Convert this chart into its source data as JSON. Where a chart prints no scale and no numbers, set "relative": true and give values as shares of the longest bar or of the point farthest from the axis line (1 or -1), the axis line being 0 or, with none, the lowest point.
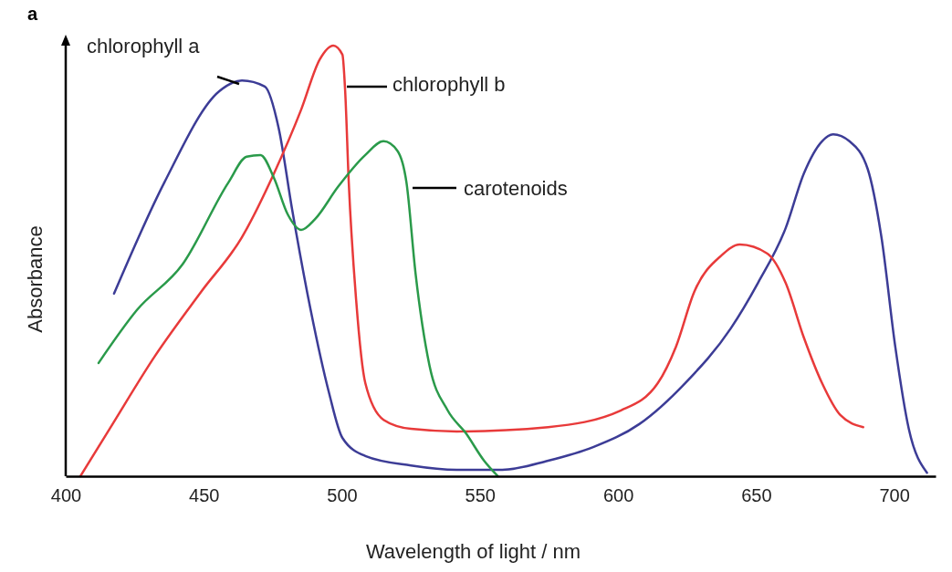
{
  "chart_data": {
    "type": "line",
    "relative": true,
    "xlabel": "Wavelength of light / nm",
    "ylabel": "Absorbance",
    "annotations": [
      "a"
    ],
    "xlim": [
      400,
      715
    ],
    "xticks": [
      400,
      450,
      500,
      550,
      600,
      650,
      700
    ],
    "legend": false,
    "marker": "none",
    "line_style": "solid",
    "series": [
      {
        "name": "chlorophyll a",
        "color": "#3c3c96",
        "x": [
          417.5,
          435.7,
          455.6,
          463.8,
          472.1,
          477.1,
          482.0,
          488.7,
          495.3,
          500.2,
          508.5,
          525.0,
          541.6,
          558.1,
          574.7,
          591.2,
          607.7,
          624.3,
          640.8,
          650.7,
          660.7,
          667.3,
          673.9,
          677.9,
          683.8,
          690.4,
          695.4,
          700.4,
          705.3,
          711.9
        ],
        "values": [
          0.424,
          0.682,
          0.894,
          0.919,
          0.905,
          0.809,
          0.619,
          0.386,
          0.195,
          0.089,
          0.047,
          0.025,
          0.015,
          0.015,
          0.036,
          0.068,
          0.121,
          0.216,
          0.343,
          0.449,
          0.576,
          0.703,
          0.778,
          0.794,
          0.778,
          0.714,
          0.555,
          0.301,
          0.11,
          0.008
        ]
      },
      {
        "name": "chlorophyll b",
        "color": "#e83a3a",
        "x": [
          405.3,
          415.9,
          432.4,
          449.0,
          463.8,
          475.4,
          485.3,
          492.0,
          496.9,
          500.2,
          501.2,
          502.5,
          505.2,
          508.5,
          515.1,
          525.0,
          541.6,
          574.7,
          601.1,
          614.4,
          621.0,
          627.6,
          637.5,
          644.1,
          654.1,
          660.7,
          667.3,
          673.9,
          680.5,
          688.8
        ],
        "values": [
          0,
          0.11,
          0.28,
          0.428,
          0.555,
          0.703,
          0.852,
          0.968,
          1,
          0.979,
          0.894,
          0.682,
          0.407,
          0.216,
          0.131,
          0.11,
          0.104,
          0.114,
          0.153,
          0.216,
          0.301,
          0.428,
          0.513,
          0.538,
          0.517,
          0.449,
          0.322,
          0.216,
          0.142,
          0.114
        ]
      },
      {
        "name": "carotenoids",
        "color": "#2a9a4a",
        "x": [
          411.9,
          425.8,
          442.3,
          458.9,
          465.5,
          470.5,
          475.4,
          480.4,
          485.3,
          490.3,
          498.6,
          508.5,
          515.1,
          520.1,
          523.4,
          526.7,
          531.7,
          538.3,
          544.9,
          551.5,
          556.5
        ],
        "values": [
          0.263,
          0.386,
          0.492,
          0.682,
          0.742,
          0.746,
          0.693,
          0.608,
          0.572,
          0.597,
          0.672,
          0.746,
          0.778,
          0.756,
          0.682,
          0.47,
          0.258,
          0.153,
          0.1,
          0.036,
          0
        ]
      }
    ]
  }
}
